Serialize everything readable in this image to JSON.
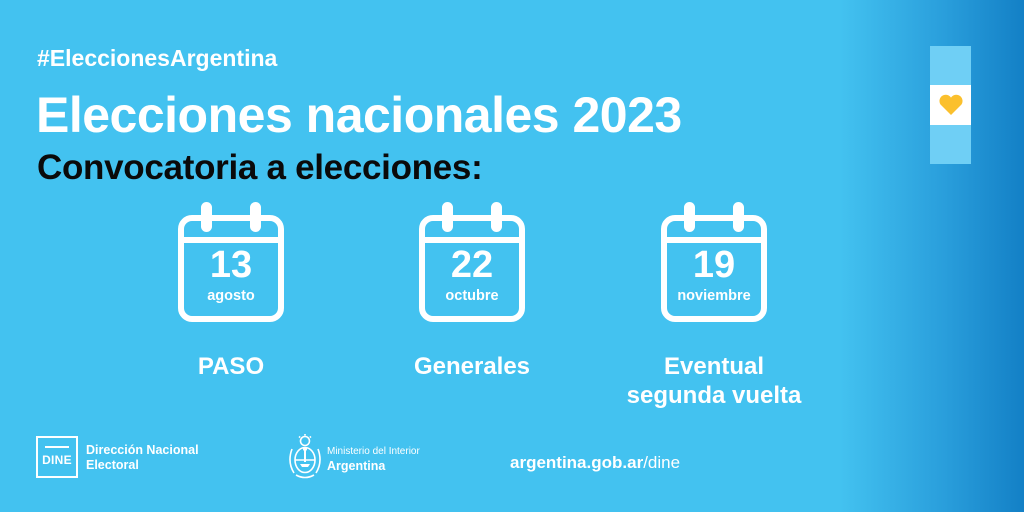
{
  "hashtag": "#EleccionesArgentina",
  "title": "Elecciones nacionales 2023",
  "subtitle": "Convocatoria a elecciones:",
  "dates": [
    {
      "day": "13",
      "month": "agosto",
      "label": "PASO"
    },
    {
      "day": "22",
      "month": "octubre",
      "label": "Generales"
    },
    {
      "day": "19",
      "month": "noviembre",
      "label_line1": "Eventual",
      "label_line2": "segunda vuelta"
    }
  ],
  "footer": {
    "dine_logo": "DINE",
    "dine_name_line1": "Dirección Nacional",
    "dine_name_line2": "Electoral",
    "ministry_line1": "Ministerio del Interior",
    "ministry_line2": "Argentina",
    "url_bold": "argentina.gob.ar",
    "url_rest": "/dine"
  },
  "colors": {
    "background": "#43c2f0",
    "gradient_end": "#1380c6",
    "text": "#ffffff",
    "subtitle": "#0a0a0a",
    "heart": "#fbc02d",
    "flag_blue": "#6fcff5"
  },
  "icons": [
    "calendar-icon",
    "heart-icon",
    "coat-of-arms-icon"
  ]
}
